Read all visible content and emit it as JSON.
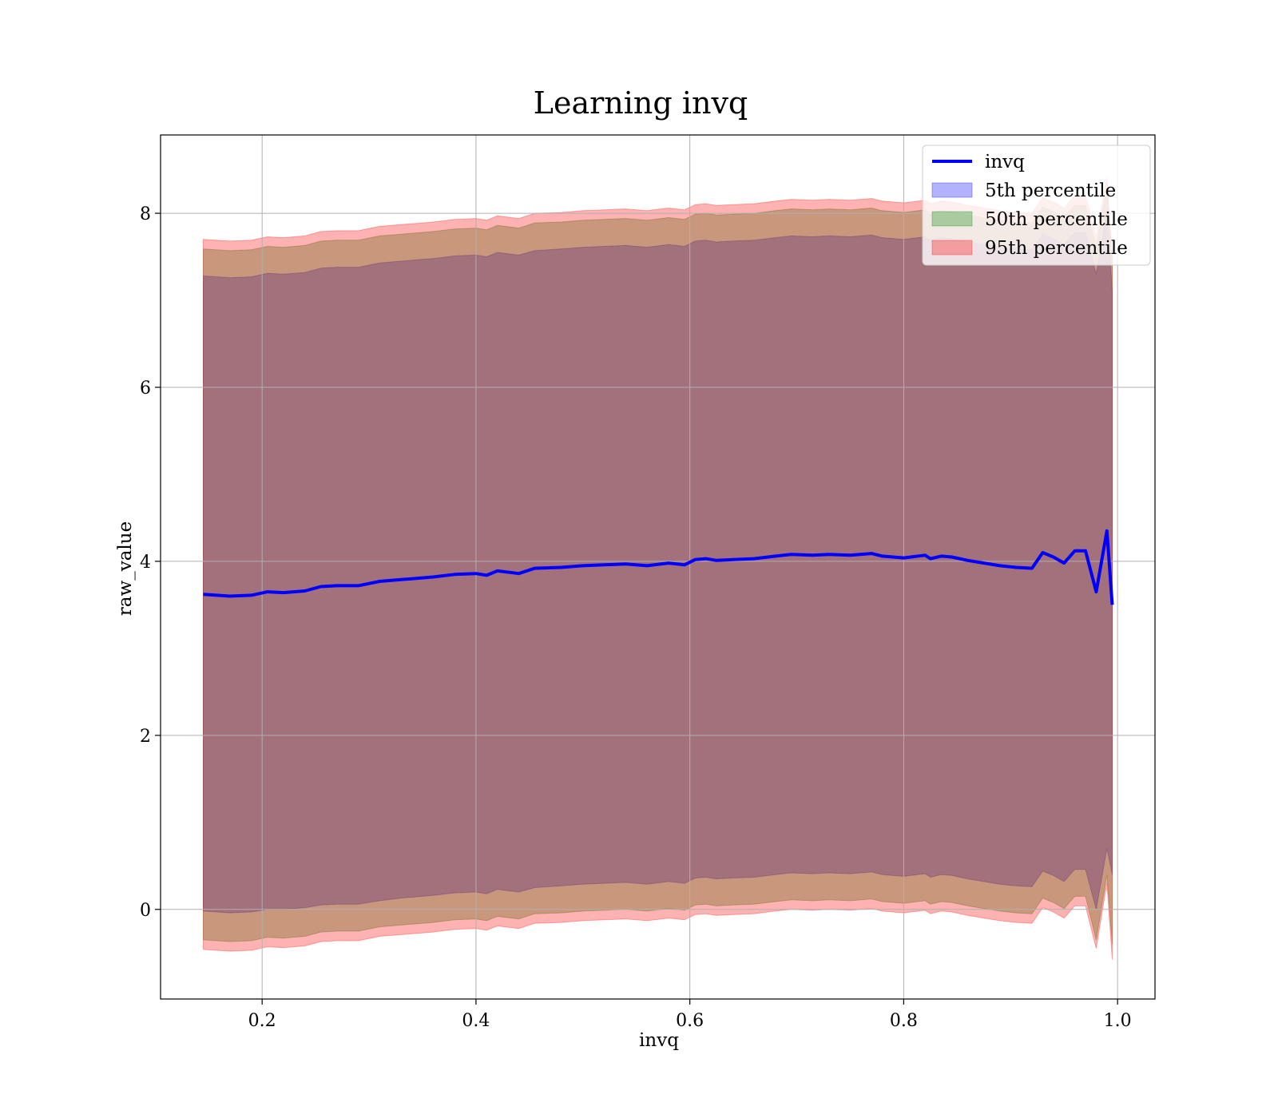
{
  "chart_data": {
    "type": "area",
    "title": "Learning invq",
    "xlabel": "invq",
    "ylabel": "raw_value",
    "xlim": [
      0.105,
      1.035
    ],
    "ylim": [
      -1.03,
      8.9
    ],
    "xticks": [
      0.2,
      0.4,
      0.6,
      0.8,
      1.0
    ],
    "xtick_labels": [
      "0.2",
      "0.4",
      "0.6",
      "0.8",
      "1.0"
    ],
    "yticks": [
      0,
      2,
      4,
      6,
      8
    ],
    "ytick_labels": [
      "0",
      "2",
      "4",
      "6",
      "8"
    ],
    "grid": true,
    "legend_position": "top-right",
    "x": [
      0.145,
      0.17,
      0.19,
      0.205,
      0.22,
      0.24,
      0.255,
      0.27,
      0.29,
      0.31,
      0.33,
      0.35,
      0.36,
      0.38,
      0.4,
      0.41,
      0.42,
      0.44,
      0.455,
      0.48,
      0.5,
      0.52,
      0.54,
      0.56,
      0.58,
      0.595,
      0.605,
      0.615,
      0.625,
      0.64,
      0.66,
      0.68,
      0.695,
      0.715,
      0.73,
      0.75,
      0.77,
      0.78,
      0.8,
      0.82,
      0.825,
      0.835,
      0.845,
      0.86,
      0.875,
      0.89,
      0.905,
      0.92,
      0.93,
      0.94,
      0.95,
      0.96,
      0.97,
      0.98,
      0.99,
      0.995
    ],
    "series": [
      {
        "name": "invq",
        "color": "#0000ff",
        "values": [
          3.62,
          3.6,
          3.61,
          3.65,
          3.64,
          3.66,
          3.71,
          3.72,
          3.72,
          3.77,
          3.79,
          3.81,
          3.82,
          3.85,
          3.86,
          3.84,
          3.89,
          3.86,
          3.92,
          3.93,
          3.95,
          3.96,
          3.97,
          3.95,
          3.98,
          3.96,
          4.02,
          4.03,
          4.01,
          4.02,
          4.03,
          4.06,
          4.08,
          4.07,
          4.08,
          4.07,
          4.09,
          4.06,
          4.04,
          4.07,
          4.03,
          4.06,
          4.05,
          4.01,
          3.98,
          3.95,
          3.93,
          3.92,
          4.1,
          4.05,
          3.98,
          4.12,
          4.12,
          3.65,
          4.35,
          3.5
        ]
      },
      {
        "name": "5th percentile",
        "color": "#0000ff",
        "lower": [
          -0.02,
          -0.04,
          -0.03,
          0.0,
          0.0,
          0.02,
          0.05,
          0.06,
          0.06,
          0.1,
          0.13,
          0.15,
          0.16,
          0.19,
          0.2,
          0.18,
          0.23,
          0.2,
          0.25,
          0.27,
          0.29,
          0.3,
          0.31,
          0.29,
          0.32,
          0.3,
          0.36,
          0.37,
          0.35,
          0.36,
          0.37,
          0.4,
          0.42,
          0.41,
          0.42,
          0.41,
          0.43,
          0.4,
          0.38,
          0.41,
          0.37,
          0.4,
          0.39,
          0.35,
          0.32,
          0.29,
          0.27,
          0.26,
          0.44,
          0.39,
          0.32,
          0.46,
          0.46,
          0.0,
          0.7,
          0.4
        ],
        "upper": [
          7.28,
          7.26,
          7.27,
          7.31,
          7.3,
          7.32,
          7.37,
          7.38,
          7.38,
          7.43,
          7.45,
          7.47,
          7.48,
          7.51,
          7.52,
          7.5,
          7.55,
          7.52,
          7.57,
          7.59,
          7.61,
          7.62,
          7.63,
          7.61,
          7.64,
          7.62,
          7.68,
          7.69,
          7.67,
          7.68,
          7.69,
          7.72,
          7.74,
          7.73,
          7.74,
          7.73,
          7.75,
          7.72,
          7.7,
          7.73,
          7.69,
          7.72,
          7.71,
          7.67,
          7.64,
          7.61,
          7.59,
          7.58,
          7.76,
          7.71,
          7.64,
          7.78,
          7.78,
          7.3,
          8.0,
          7.1
        ]
      },
      {
        "name": "50th percentile",
        "color": "#008000",
        "lower": [
          -0.35,
          -0.37,
          -0.36,
          -0.32,
          -0.33,
          -0.31,
          -0.26,
          -0.25,
          -0.25,
          -0.2,
          -0.18,
          -0.16,
          -0.15,
          -0.12,
          -0.11,
          -0.13,
          -0.08,
          -0.11,
          -0.05,
          -0.04,
          -0.02,
          -0.01,
          0.0,
          -0.02,
          0.01,
          -0.01,
          0.05,
          0.06,
          0.04,
          0.05,
          0.06,
          0.09,
          0.11,
          0.1,
          0.11,
          0.1,
          0.12,
          0.09,
          0.07,
          0.1,
          0.06,
          0.09,
          0.08,
          0.04,
          0.01,
          -0.02,
          -0.04,
          -0.05,
          0.13,
          0.08,
          0.01,
          0.15,
          0.15,
          -0.35,
          0.4,
          -0.4
        ],
        "upper": [
          7.59,
          7.57,
          7.58,
          7.62,
          7.61,
          7.63,
          7.68,
          7.69,
          7.69,
          7.74,
          7.76,
          7.78,
          7.79,
          7.82,
          7.83,
          7.81,
          7.86,
          7.83,
          7.89,
          7.9,
          7.92,
          7.93,
          7.94,
          7.92,
          7.95,
          7.93,
          7.99,
          8.0,
          7.98,
          7.99,
          8.0,
          8.03,
          8.05,
          8.04,
          8.05,
          8.04,
          8.06,
          8.03,
          8.01,
          8.04,
          8.0,
          8.03,
          8.02,
          7.98,
          7.95,
          7.92,
          7.9,
          7.89,
          8.07,
          8.02,
          7.95,
          8.09,
          8.09,
          7.62,
          8.3,
          7.4
        ]
      },
      {
        "name": "95th percentile",
        "color": "#ff0000",
        "lower": [
          -0.46,
          -0.48,
          -0.47,
          -0.43,
          -0.44,
          -0.42,
          -0.37,
          -0.36,
          -0.36,
          -0.31,
          -0.29,
          -0.27,
          -0.26,
          -0.23,
          -0.22,
          -0.24,
          -0.19,
          -0.22,
          -0.16,
          -0.15,
          -0.13,
          -0.12,
          -0.11,
          -0.13,
          -0.1,
          -0.12,
          -0.06,
          -0.05,
          -0.07,
          -0.06,
          -0.05,
          -0.02,
          0.0,
          -0.01,
          0.0,
          -0.01,
          0.01,
          -0.02,
          -0.04,
          -0.01,
          -0.05,
          -0.02,
          -0.03,
          -0.07,
          -0.1,
          -0.13,
          -0.15,
          -0.16,
          0.02,
          -0.03,
          -0.1,
          0.04,
          0.04,
          -0.45,
          0.3,
          -0.58
        ],
        "upper": [
          7.7,
          7.68,
          7.69,
          7.73,
          7.72,
          7.74,
          7.79,
          7.8,
          7.8,
          7.85,
          7.87,
          7.89,
          7.9,
          7.93,
          7.94,
          7.92,
          7.97,
          7.94,
          8.0,
          8.01,
          8.03,
          8.04,
          8.05,
          8.03,
          8.06,
          8.04,
          8.1,
          8.11,
          8.09,
          8.1,
          8.11,
          8.14,
          8.16,
          8.15,
          8.16,
          8.15,
          8.17,
          8.14,
          8.12,
          8.15,
          8.11,
          8.14,
          8.13,
          8.09,
          8.06,
          8.03,
          8.01,
          8.0,
          8.18,
          8.13,
          8.06,
          8.2,
          8.2,
          7.73,
          8.41,
          7.5
        ]
      }
    ]
  }
}
